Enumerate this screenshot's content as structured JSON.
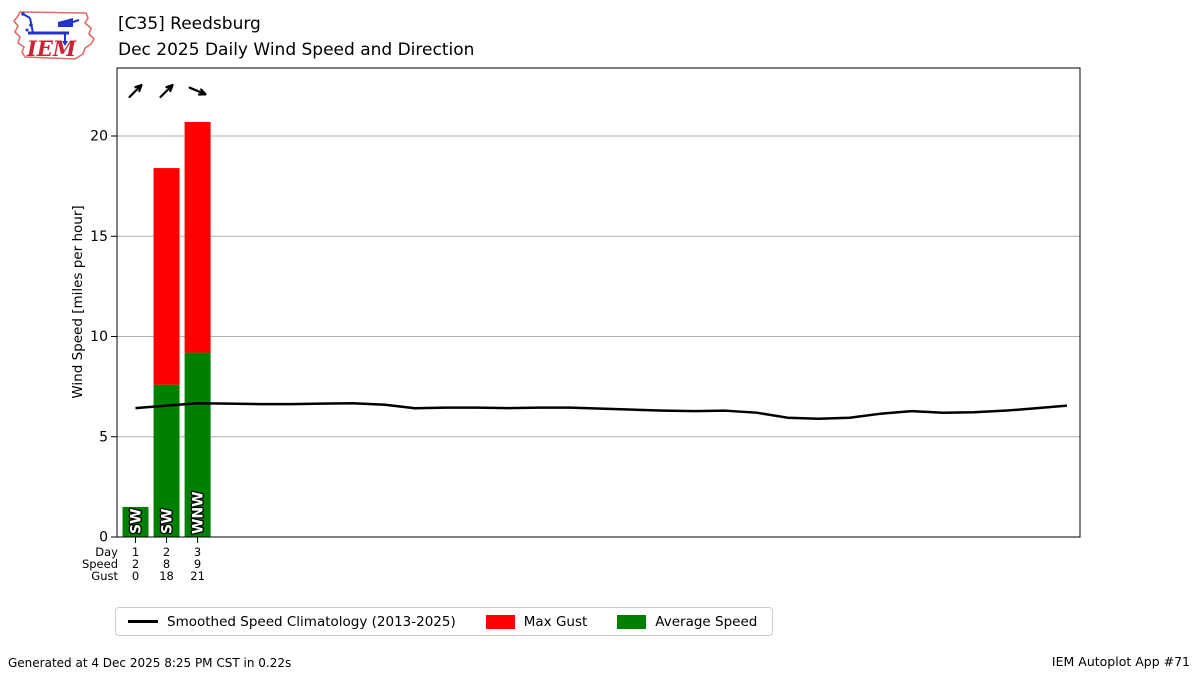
{
  "logo": {
    "text": "IEM"
  },
  "header": {
    "title": "[C35] Reedsburg",
    "subtitle": "Dec 2025 Daily Wind Speed and Direction"
  },
  "chart_data": {
    "type": "bar",
    "title": "Dec 2025 Daily Wind Speed and Direction",
    "station": "[C35] Reedsburg",
    "xlabel": "Day",
    "ylabel": "Wind Speed [miles per hour]",
    "ylim": [
      0,
      23.4
    ],
    "y_ticks": [
      0,
      5,
      10,
      15,
      20
    ],
    "days_in_month": 31,
    "grid": true,
    "legend_position": "bottom",
    "bars": {
      "categories": [
        1,
        2,
        3
      ],
      "series": [
        {
          "name": "Average Speed",
          "color": "#008000",
          "values": [
            1.5,
            7.6,
            9.2
          ]
        },
        {
          "name": "Max Gust",
          "color": "#ff0000",
          "values": [
            0,
            18.4,
            20.7
          ]
        }
      ],
      "direction_labels": [
        "SW",
        "SW",
        "WNW"
      ],
      "direction_degrees": [
        225,
        225,
        292.5
      ]
    },
    "line_series": {
      "name": "Smoothed Speed Climatology (2013-2025)",
      "color": "#000000",
      "x": [
        1,
        2,
        3,
        4,
        5,
        6,
        7,
        8,
        9,
        10,
        11,
        12,
        13,
        14,
        15,
        16,
        17,
        18,
        19,
        20,
        21,
        22,
        23,
        24,
        25,
        26,
        27,
        28,
        29,
        30,
        31
      ],
      "values": [
        6.43,
        6.55,
        6.67,
        6.65,
        6.63,
        6.63,
        6.65,
        6.67,
        6.6,
        6.42,
        6.45,
        6.45,
        6.43,
        6.45,
        6.45,
        6.4,
        6.35,
        6.3,
        6.28,
        6.3,
        6.2,
        5.95,
        5.9,
        5.95,
        6.15,
        6.28,
        6.2,
        6.22,
        6.3,
        6.42,
        6.55
      ]
    },
    "bottom_table": {
      "rows": [
        {
          "label": "Day",
          "values": [
            "1",
            "2",
            "3"
          ]
        },
        {
          "label": "Speed",
          "values": [
            "2",
            "8",
            "9"
          ]
        },
        {
          "label": "Gust",
          "values": [
            "0",
            "18",
            "21"
          ]
        }
      ]
    }
  },
  "legend": {
    "items": [
      {
        "label": "Smoothed Speed Climatology (2013-2025)",
        "swatch": "line",
        "color": "#000000"
      },
      {
        "label": "Max Gust",
        "swatch": "rect",
        "color": "#ff0000"
      },
      {
        "label": "Average Speed",
        "swatch": "rect",
        "color": "#008000"
      }
    ]
  },
  "footer": {
    "left": "Generated at 4 Dec 2025 8:25 PM CST in 0.22s",
    "right": "IEM Autoplot App #71"
  },
  "colors": {
    "grid": "#b0b0b0",
    "axis": "#000000",
    "logo_outline": "#e06a6a",
    "logo_instrument": "#2233cc",
    "logo_text": "#cc2233"
  }
}
